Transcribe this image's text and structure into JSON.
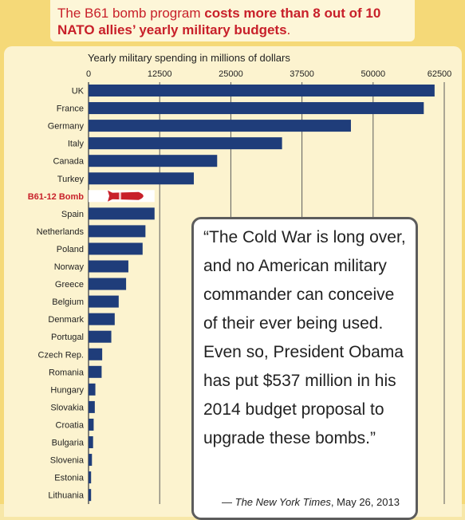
{
  "header": {
    "lead": "The B61 bomb program ",
    "emphasis": "costs more than 8 out of 10 NATO allies’ yearly military budgets",
    "tail": "."
  },
  "quote": {
    "text": "“The Cold War is long over, and no American military commander can conceive of their ever being used. Even so, President Obama has put $537 million in his 2014 budget proposal to upgrade these bombs.”",
    "source_publication": "The New York Times",
    "source_date": ", May 26, 2013"
  },
  "colors": {
    "bar": "#1f3d7a",
    "highlight": "#c8202a",
    "gridline": "#5a5a5a"
  },
  "chart_data": {
    "type": "bar",
    "orientation": "horizontal",
    "title": "",
    "xlabel": "Yearly military spending in millions of dollars",
    "ylabel": "",
    "xlim": [
      0,
      62500
    ],
    "ticks": [
      0,
      12500,
      25000,
      37500,
      50000,
      62500
    ],
    "tick_labels": [
      "0",
      "12500",
      "25000",
      "37500",
      "50000",
      "62500"
    ],
    "grid": true,
    "highlight_category": "B61-12 Bomb",
    "highlight_icon": "bomb-icon",
    "categories": [
      "UK",
      "France",
      "Germany",
      "Italy",
      "Canada",
      "Turkey",
      "B61-12 Bomb",
      "Spain",
      "Netherlands",
      "Poland",
      "Norway",
      "Greece",
      "Belgium",
      "Denmark",
      "Portugal",
      "Czech Rep.",
      "Romania",
      "Hungary",
      "Slovakia",
      "Croatia",
      "Bulgaria",
      "Slovenia",
      "Estonia",
      "Lithuania"
    ],
    "values": [
      60800,
      58900,
      46100,
      34000,
      22600,
      18500,
      11600,
      11600,
      10000,
      9500,
      7000,
      6600,
      5300,
      4600,
      4000,
      2400,
      2300,
      1200,
      1100,
      900,
      800,
      600,
      450,
      450
    ]
  }
}
